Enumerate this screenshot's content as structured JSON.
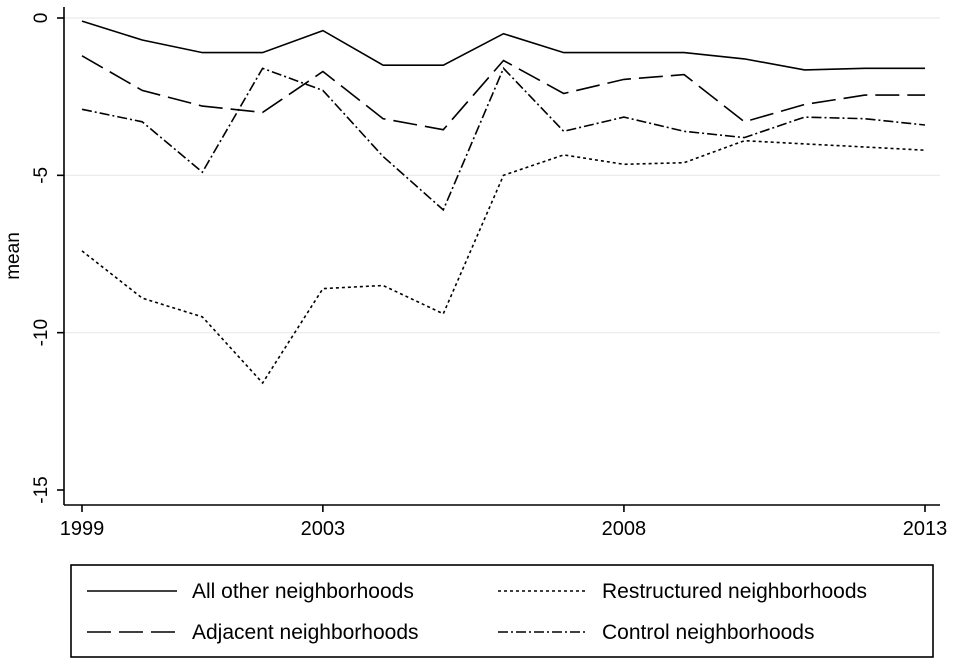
{
  "chart_data": {
    "type": "line",
    "title": "",
    "xlabel": "",
    "ylabel": "mean",
    "xlim": [
      1999,
      2013
    ],
    "ylim": [
      -15,
      0
    ],
    "x_ticks": [
      1999,
      2003,
      2008,
      2013
    ],
    "x_tick_labels": [
      "1999",
      "2003",
      "2008",
      "2013"
    ],
    "y_ticks": [
      0,
      -5,
      -10,
      -15
    ],
    "y_tick_labels": [
      "0",
      "-5",
      "-10",
      "-15"
    ],
    "grid": "horizontal",
    "legend_position": "bottom",
    "x": [
      1999,
      2000,
      2001,
      2002,
      2003,
      2004,
      2005,
      2006,
      2007,
      2008,
      2009,
      2010,
      2011,
      2012,
      2013
    ],
    "series": [
      {
        "name": "All other neighborhoods",
        "line_style": "solid",
        "values": [
          -0.1,
          -0.7,
          -1.1,
          -1.1,
          -0.4,
          -1.5,
          -1.5,
          -0.5,
          -1.1,
          -1.1,
          -1.1,
          -1.3,
          -1.65,
          -1.6,
          -1.6
        ]
      },
      {
        "name": "Adjacent neighborhoods",
        "line_style": "long-dash",
        "values": [
          -1.2,
          -2.3,
          -2.8,
          -3.0,
          -1.7,
          -3.2,
          -3.55,
          -1.35,
          -2.4,
          -1.95,
          -1.8,
          -3.3,
          -2.75,
          -2.45,
          -2.45
        ]
      },
      {
        "name": "Restructured neighborhoods",
        "line_style": "dotted",
        "values": [
          -7.4,
          -8.9,
          -9.5,
          -11.6,
          -8.6,
          -8.5,
          -9.4,
          -5.0,
          -4.35,
          -4.65,
          -4.6,
          -3.9,
          -4.0,
          -4.1,
          -4.2
        ]
      },
      {
        "name": "Control neighborhoods",
        "line_style": "dash-dot",
        "values": [
          -2.9,
          -3.3,
          -4.9,
          -1.6,
          -2.3,
          -4.4,
          -6.1,
          -1.6,
          -3.6,
          -3.15,
          -3.6,
          -3.8,
          -3.15,
          -3.2,
          -3.4
        ]
      }
    ]
  },
  "colors": {
    "line": "#000000",
    "grid": "#eaeaea",
    "background": "#ffffff"
  }
}
